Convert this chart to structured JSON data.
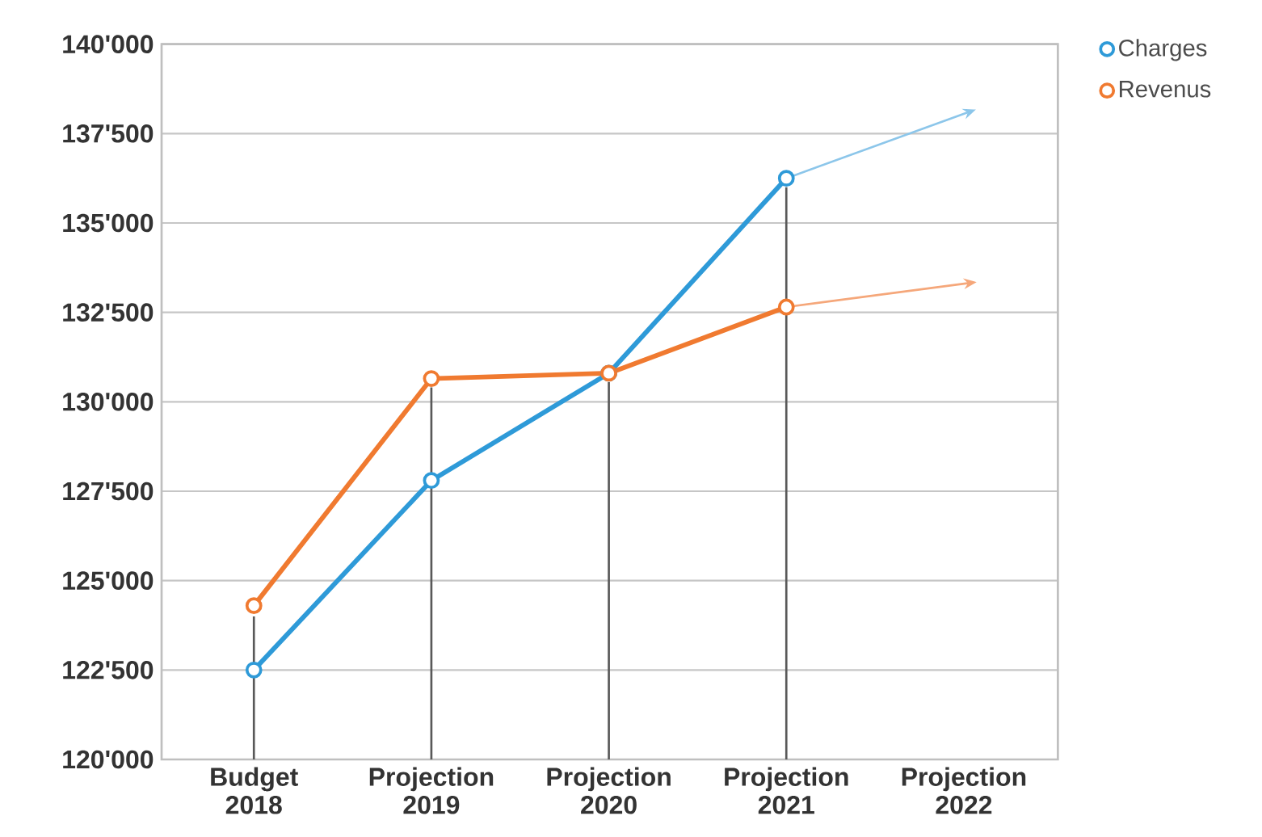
{
  "chart_data": {
    "type": "line",
    "categories": [
      "Budget 2018",
      "Projection 2019",
      "Projection 2020",
      "Projection 2021",
      "Projection 2022"
    ],
    "series": [
      {
        "type": "bar",
        "color": "#595959",
        "values": [
          124000,
          130400,
          130550,
          136000,
          null
        ]
      },
      {
        "name": "Charges",
        "color": "#2e9ad8",
        "values": [
          122500,
          127800,
          130800,
          136250,
          null
        ],
        "marker": "circle"
      },
      {
        "name": "Revenus",
        "color": "#f07a30",
        "values": [
          124300,
          130650,
          130800,
          132650,
          null
        ],
        "marker": "circle"
      },
      {
        "color": "#8cc6ea",
        "values": [
          null,
          null,
          null,
          136250,
          138050
        ],
        "marker": "diamond"
      },
      {
        "color": "#f5a77a",
        "values": [
          null,
          null,
          null,
          132650,
          133300
        ],
        "marker": "diamond"
      }
    ],
    "ylim": [
      120000,
      140000
    ],
    "yticks": [
      {
        "value": 120000,
        "label": "120'000"
      },
      {
        "value": 122500,
        "label": "122'500"
      },
      {
        "value": 125000,
        "label": "125'000"
      },
      {
        "value": 127500,
        "label": "127'500"
      },
      {
        "value": 130000,
        "label": "130'000"
      },
      {
        "value": 132500,
        "label": "132'500"
      },
      {
        "value": 135000,
        "label": "135'000"
      },
      {
        "value": 137500,
        "label": "137'500"
      },
      {
        "value": 140000,
        "label": "140'000"
      }
    ],
    "grid": "y",
    "legend": "top right"
  }
}
